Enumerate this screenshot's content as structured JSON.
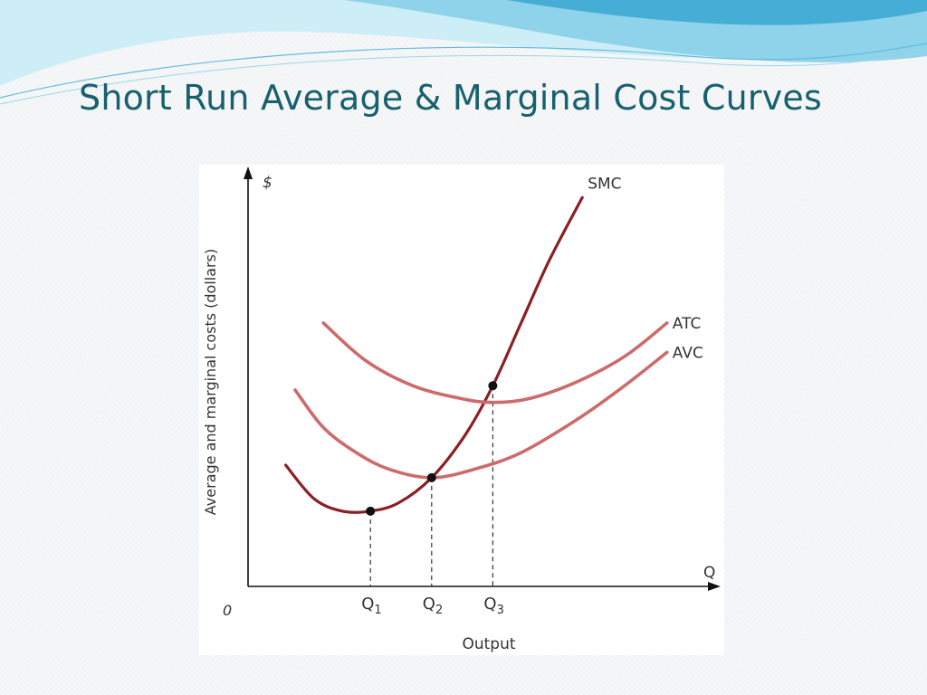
{
  "slide": {
    "title": "Short Run Average & Marginal Cost Curves"
  },
  "colors": {
    "title": "#17606e",
    "smc": "#8b1f24",
    "average_curves": "#cd6b6b",
    "axis": "#111111",
    "wave_light": "#bfe7f3",
    "wave_mid": "#7ccbe6",
    "wave_dark": "#3ea8d0"
  },
  "chart_data": {
    "type": "line",
    "title": "",
    "xlabel": "Output",
    "ylabel": "Average and marginal costs (dollars)",
    "y_unit_label": "$",
    "x_axis_label": "Q",
    "origin_label": "0",
    "grid": false,
    "xlim": [
      0,
      10
    ],
    "ylim": [
      0,
      10
    ],
    "x_ticks": [
      {
        "base": "Q",
        "sub": "1",
        "x": 2.6
      },
      {
        "base": "Q",
        "sub": "2",
        "x": 3.9
      },
      {
        "base": "Q",
        "sub": "3",
        "x": 5.2
      }
    ],
    "series": [
      {
        "name": "SMC",
        "points": [
          [
            0.8,
            2.9
          ],
          [
            1.4,
            2.1
          ],
          [
            2.0,
            1.8
          ],
          [
            2.6,
            1.8
          ],
          [
            3.2,
            2.0
          ],
          [
            3.9,
            2.6
          ],
          [
            4.6,
            3.6
          ],
          [
            5.2,
            4.8
          ],
          [
            5.8,
            6.3
          ],
          [
            6.4,
            7.8
          ],
          [
            7.1,
            9.3
          ]
        ]
      },
      {
        "name": "ATC",
        "points": [
          [
            1.6,
            6.3
          ],
          [
            2.5,
            5.4
          ],
          [
            3.5,
            4.8
          ],
          [
            4.5,
            4.5
          ],
          [
            5.2,
            4.4
          ],
          [
            6.0,
            4.5
          ],
          [
            7.0,
            4.9
          ],
          [
            8.0,
            5.5
          ],
          [
            8.9,
            6.3
          ]
        ]
      },
      {
        "name": "AVC",
        "points": [
          [
            1.0,
            4.7
          ],
          [
            1.6,
            3.8
          ],
          [
            2.3,
            3.2
          ],
          [
            3.0,
            2.8
          ],
          [
            3.9,
            2.6
          ],
          [
            4.8,
            2.8
          ],
          [
            5.8,
            3.2
          ],
          [
            7.0,
            4.0
          ],
          [
            8.0,
            4.8
          ],
          [
            8.9,
            5.6
          ]
        ]
      }
    ],
    "marked_points": [
      {
        "x": 2.6,
        "y": 1.8
      },
      {
        "x": 3.9,
        "y": 2.6
      },
      {
        "x": 5.2,
        "y": 4.8
      }
    ]
  }
}
